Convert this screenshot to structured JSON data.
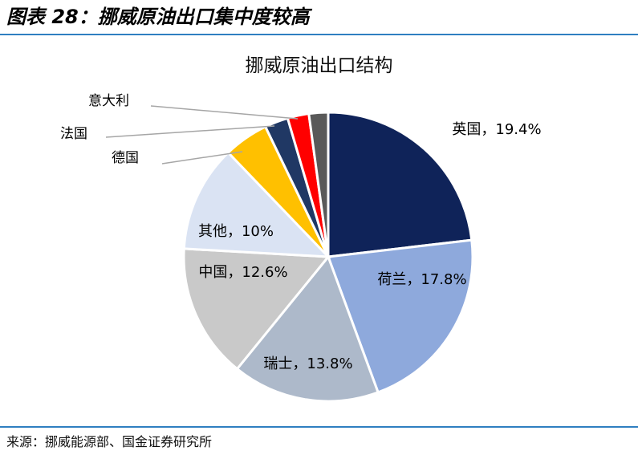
{
  "figure": {
    "title": "图表 28：挪威原油出口集中度较高",
    "source": "来源：挪威能源部、国金证券研究所"
  },
  "chart_data": {
    "type": "pie",
    "title": "挪威原油出口结构",
    "slices": [
      {
        "label": "英国",
        "value": 19.4,
        "color": "#0f2359",
        "display": "英国，19.4%"
      },
      {
        "label": "荷兰",
        "value": 17.8,
        "color": "#8ea9dc",
        "display": "荷兰，17.8%"
      },
      {
        "label": "瑞士",
        "value": 13.8,
        "color": "#adb9ca",
        "display": "瑞士，13.8%"
      },
      {
        "label": "中国",
        "value": 12.6,
        "color": "#c9c9c9",
        "display": "中国，12.6%"
      },
      {
        "label": "其他",
        "value": 10,
        "color": "#dae3f3",
        "display": "其他，10%"
      },
      {
        "label": "德国",
        "value": 4.2,
        "color": "#ffc000",
        "display": "德国"
      },
      {
        "label": "法国",
        "value": 2.2,
        "color": "#203864",
        "display": "法国"
      },
      {
        "label": "意大利",
        "value": 2.0,
        "color": "#ff0000",
        "display": "意大利"
      },
      {
        "label": "",
        "value": 1.8,
        "color": "#595959",
        "display": ""
      }
    ],
    "legend": "none"
  }
}
